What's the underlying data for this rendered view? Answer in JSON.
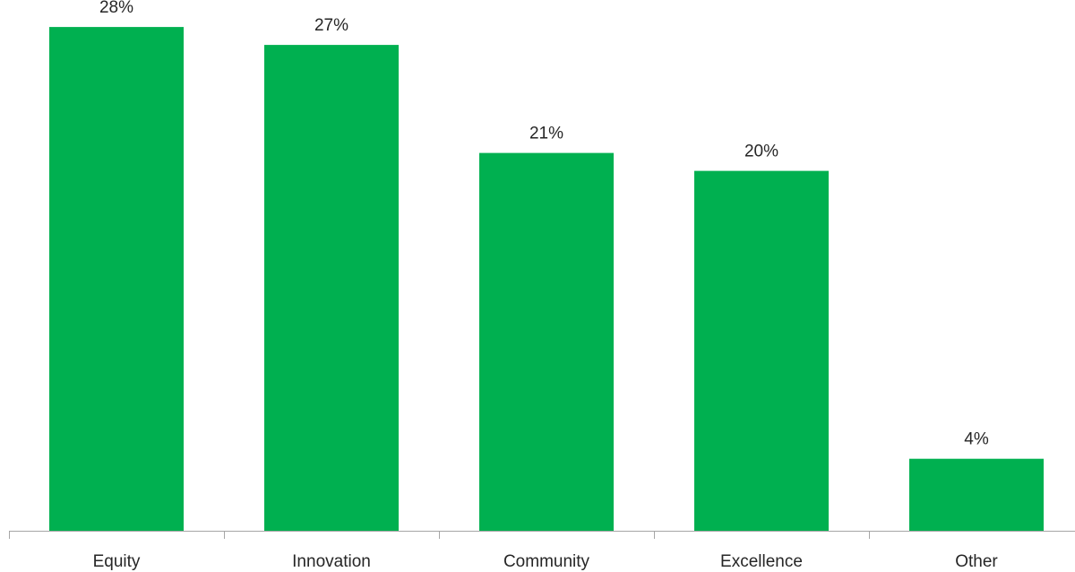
{
  "chart_data": {
    "type": "bar",
    "categories": [
      "Equity",
      "Innovation",
      "Community",
      "Excellence",
      "Other"
    ],
    "values": [
      28,
      27,
      21,
      20,
      4
    ],
    "value_labels": [
      "28%",
      "27%",
      "21%",
      "20%",
      "4%"
    ],
    "unit": "%",
    "ylim": [
      0,
      29
    ],
    "title": "",
    "xlabel": "",
    "ylabel": "",
    "grid": false,
    "legend": "none",
    "bar_color": "#00b050",
    "axis_color": "#a6a6a6",
    "text_color": "#262626"
  }
}
